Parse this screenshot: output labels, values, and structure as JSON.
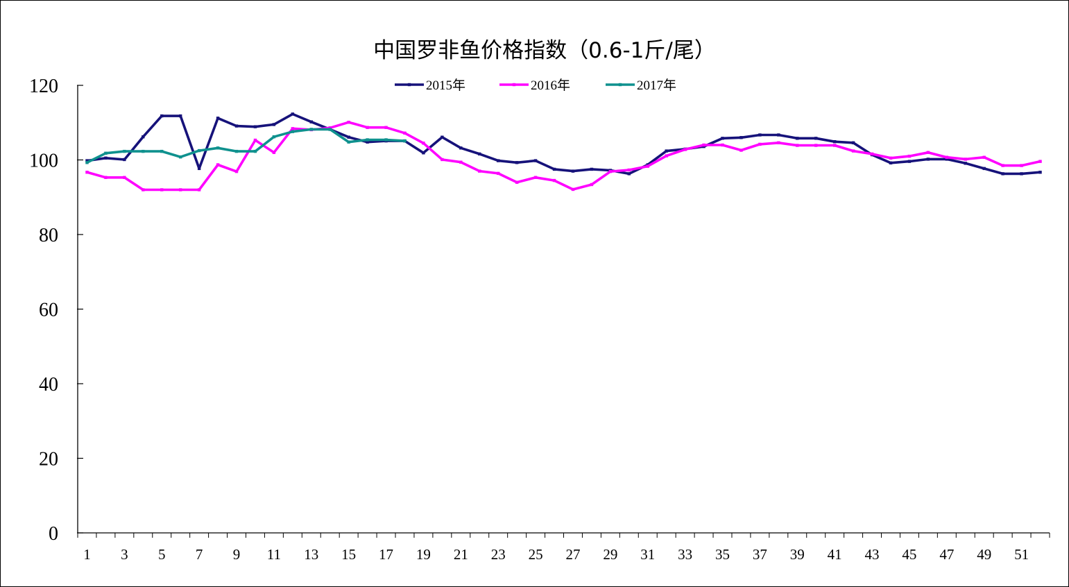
{
  "chart_data": {
    "type": "line",
    "title": "中国罗非鱼价格指数（0.6-1斤/尾）",
    "xlabel": "",
    "ylabel": "",
    "ylim": [
      0,
      120
    ],
    "yticks": [
      0,
      20,
      40,
      60,
      80,
      100,
      120
    ],
    "xlim": [
      1,
      52
    ],
    "xtick_labels": [
      1,
      3,
      5,
      7,
      9,
      11,
      13,
      15,
      17,
      19,
      21,
      23,
      25,
      27,
      29,
      31,
      33,
      35,
      37,
      39,
      41,
      43,
      45,
      47,
      49,
      51
    ],
    "grid": false,
    "legend_position": "top-center",
    "x": [
      1,
      2,
      3,
      4,
      5,
      6,
      7,
      8,
      9,
      10,
      11,
      12,
      13,
      14,
      15,
      16,
      17,
      18,
      19,
      20,
      21,
      22,
      23,
      24,
      25,
      26,
      27,
      28,
      29,
      30,
      31,
      32,
      33,
      34,
      35,
      36,
      37,
      38,
      39,
      40,
      41,
      42,
      43,
      44,
      45,
      46,
      47,
      48,
      49,
      50,
      51,
      52
    ],
    "series": [
      {
        "name": "2015年",
        "color": "#16127a",
        "values": [
          99.8,
          100.5,
          100.1,
          106.2,
          111.8,
          111.8,
          97.7,
          111.2,
          109.1,
          108.9,
          109.5,
          112.3,
          110.2,
          108.2,
          106.1,
          104.8,
          105.1,
          105.1,
          101.9,
          106.1,
          103.2,
          101.6,
          99.8,
          99.3,
          99.8,
          97.5,
          97.0,
          97.5,
          97.2,
          96.3,
          98.7,
          102.4,
          102.9,
          103.6,
          105.8,
          106.0,
          106.7,
          106.7,
          105.8,
          105.8,
          104.9,
          104.6,
          101.4,
          99.2,
          99.6,
          100.2,
          100.2,
          99.1,
          97.7,
          96.3,
          96.3,
          96.7
        ]
      },
      {
        "name": "2016年",
        "color": "#ff00ff",
        "values": [
          96.7,
          95.3,
          95.3,
          92.0,
          92.0,
          92.0,
          92.0,
          98.7,
          96.9,
          105.3,
          102.0,
          108.4,
          108.1,
          108.6,
          110.1,
          108.7,
          108.7,
          107.2,
          104.5,
          100.1,
          99.4,
          97.0,
          96.4,
          94.0,
          95.3,
          94.5,
          92.1,
          93.4,
          96.9,
          97.3,
          98.3,
          101.1,
          102.8,
          104.0,
          104.0,
          102.6,
          104.2,
          104.6,
          103.9,
          103.9,
          103.9,
          102.4,
          101.6,
          100.5,
          101.0,
          102.0,
          100.7,
          100.2,
          100.7,
          98.5,
          98.5,
          99.6
        ]
      },
      {
        "name": "2017年",
        "color": "#0f918e",
        "values": [
          99.3,
          101.8,
          102.3,
          102.3,
          102.3,
          100.8,
          102.5,
          103.2,
          102.3,
          102.3,
          106.2,
          107.6,
          108.2,
          108.2,
          104.8,
          105.4,
          105.4,
          105.1,
          null,
          null,
          null,
          null,
          null,
          null,
          null,
          null,
          null,
          null,
          null,
          null,
          null,
          null,
          null,
          null,
          null,
          null,
          null,
          null,
          null,
          null,
          null,
          null,
          null,
          null,
          null,
          null,
          null,
          null,
          null,
          null,
          null,
          null
        ]
      }
    ]
  }
}
